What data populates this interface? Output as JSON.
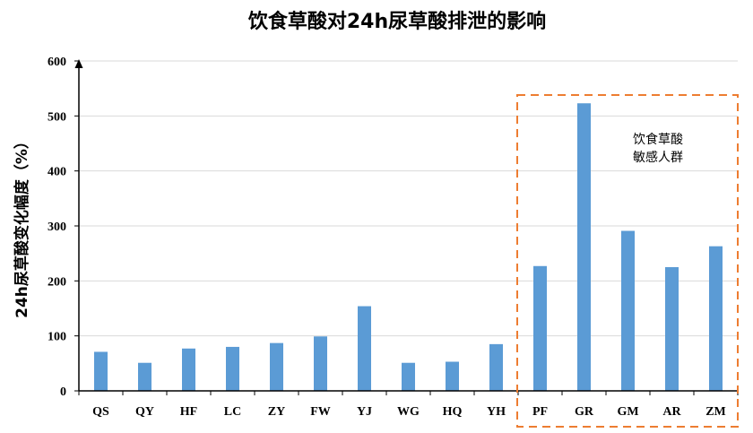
{
  "chart_data": {
    "type": "bar",
    "title": "饮食草酸对24h尿草酸排泄的影响",
    "ylabel": "24h尿草酸变化幅度（%）",
    "xlabel": "",
    "ylim": [
      0,
      600
    ],
    "yticks": [
      "0",
      "100",
      "200",
      "300",
      "400",
      "500",
      "600"
    ],
    "categories": [
      "QS",
      "QY",
      "HF",
      "LC",
      "ZY",
      "FW",
      "YJ",
      "WG",
      "HQ",
      "YH",
      "PF",
      "GR",
      "GM",
      "AR",
      "ZM"
    ],
    "values": [
      71,
      51,
      77,
      80,
      87,
      99,
      154,
      51,
      53,
      85,
      227,
      523,
      291,
      225,
      263
    ],
    "bar_color": "#5b9bd5",
    "grid": true,
    "highlight": {
      "label_line1": "饮食草酸",
      "label_line2": "敏感人群",
      "color": "#ed7d31",
      "categories": [
        "PF",
        "GR",
        "GM",
        "AR",
        "ZM"
      ]
    }
  }
}
